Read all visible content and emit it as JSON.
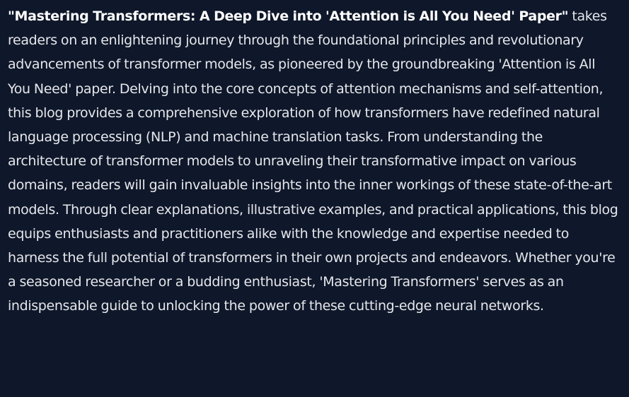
{
  "blog": {
    "title": "\"Mastering Transformers: A Deep Dive into 'Attention is All You Need' Paper\"",
    "body": " takes readers on an enlightening journey through the foundational principles and revolutionary advancements of transformer models, as pioneered by the groundbreaking 'Attention is All You Need' paper. Delving into the core concepts of attention mechanisms and self-attention, this blog provides a comprehensive exploration of how transformers have redefined natural language processing (NLP) and machine translation tasks. From understanding the architecture of transformer models to unraveling their transformative impact on various domains, readers will gain invaluable insights into the inner workings of these state-of-the-art models. Through clear explanations, illustrative examples, and practical applications, this blog equips enthusiasts and practitioners alike with the knowledge and expertise needed to harness the full potential of transformers in their own projects and endeavors. Whether you're a seasoned researcher or a budding enthusiast, 'Mastering Transformers' serves as an indispensable guide to unlocking the power of these cutting-edge neural networks."
  },
  "colors": {
    "background": "#0f172a",
    "text": "#e5e7eb",
    "title": "#ffffff"
  }
}
